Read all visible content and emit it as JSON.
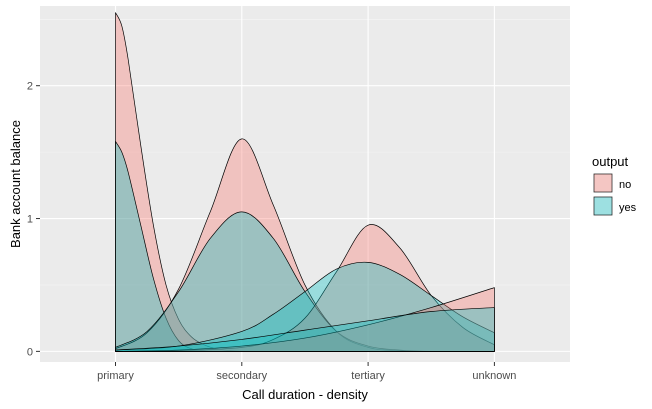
{
  "chart_data": {
    "type": "area",
    "xlabel": "Call duration - density",
    "ylabel": "Bank account balance",
    "categories": [
      "primary",
      "secondary",
      "tertiary",
      "unknown"
    ],
    "ylim": [
      -0.08,
      2.6
    ],
    "yticks": [
      0,
      1,
      2
    ],
    "grid": true,
    "background": "#EBEBEB",
    "legend": {
      "title": "output",
      "position": "right",
      "entries": [
        {
          "label": "no",
          "color": "#F8766D"
        },
        {
          "label": "yes",
          "color": "#00BFC4"
        }
      ]
    },
    "series": [
      {
        "name": "no",
        "color": "#F8766D",
        "curves": [
          {
            "category": "primary",
            "x": [
              0,
              0.05,
              0.1,
              0.2,
              0.3,
              0.4,
              0.5,
              0.6,
              0.7,
              0.8,
              1.0,
              1.5,
              2.0,
              3.0
            ],
            "y": [
              2.55,
              2.45,
              2.2,
              1.55,
              0.95,
              0.5,
              0.24,
              0.11,
              0.05,
              0.02,
              0.0,
              0.0,
              0.0,
              0.0
            ]
          },
          {
            "category": "secondary",
            "x": [
              0,
              0.25,
              0.5,
              0.75,
              1.0,
              1.25,
              1.5,
              1.75,
              2.0,
              2.25,
              2.5,
              3.0
            ],
            "y": [
              0.02,
              0.14,
              0.47,
              1.05,
              1.6,
              1.1,
              0.5,
              0.15,
              0.03,
              0.005,
              0.0,
              0.0
            ]
          },
          {
            "category": "tertiary",
            "x": [
              0,
              0.5,
              1.0,
              1.25,
              1.5,
              1.75,
              2.0,
              2.25,
              2.5,
              2.75,
              3.0
            ],
            "y": [
              0.0,
              0.005,
              0.03,
              0.09,
              0.25,
              0.6,
              0.95,
              0.78,
              0.42,
              0.18,
              0.05
            ]
          },
          {
            "category": "unknown",
            "x": [
              0,
              0.5,
              1.0,
              1.5,
              2.0,
              2.5,
              3.0
            ],
            "y": [
              0.0,
              0.01,
              0.04,
              0.1,
              0.2,
              0.33,
              0.48
            ]
          }
        ]
      },
      {
        "name": "yes",
        "color": "#00BFC4",
        "curves": [
          {
            "category": "primary",
            "x": [
              0,
              0.05,
              0.1,
              0.2,
              0.3,
              0.4,
              0.5,
              0.6,
              0.7,
              0.8,
              1.0,
              1.5,
              2.0,
              3.0
            ],
            "y": [
              1.58,
              1.5,
              1.35,
              0.95,
              0.55,
              0.25,
              0.08,
              0.02,
              0.005,
              0.0,
              0.0,
              0.0,
              0.0,
              0.0
            ]
          },
          {
            "category": "secondary",
            "x": [
              0,
              0.25,
              0.5,
              0.75,
              1.0,
              1.25,
              1.5,
              1.75,
              2.0,
              2.25,
              2.5,
              3.0
            ],
            "y": [
              0.03,
              0.15,
              0.45,
              0.85,
              1.05,
              0.85,
              0.45,
              0.15,
              0.04,
              0.01,
              0.0,
              0.0
            ]
          },
          {
            "category": "tertiary",
            "x": [
              0,
              0.5,
              1.0,
              1.25,
              1.5,
              1.75,
              2.0,
              2.25,
              2.5,
              2.75,
              3.0
            ],
            "y": [
              0.01,
              0.04,
              0.15,
              0.28,
              0.45,
              0.62,
              0.67,
              0.58,
              0.42,
              0.26,
              0.14
            ]
          },
          {
            "category": "unknown",
            "x": [
              0,
              0.5,
              1.0,
              1.5,
              2.0,
              2.5,
              3.0
            ],
            "y": [
              0.01,
              0.04,
              0.09,
              0.16,
              0.23,
              0.3,
              0.33
            ]
          }
        ]
      }
    ]
  }
}
